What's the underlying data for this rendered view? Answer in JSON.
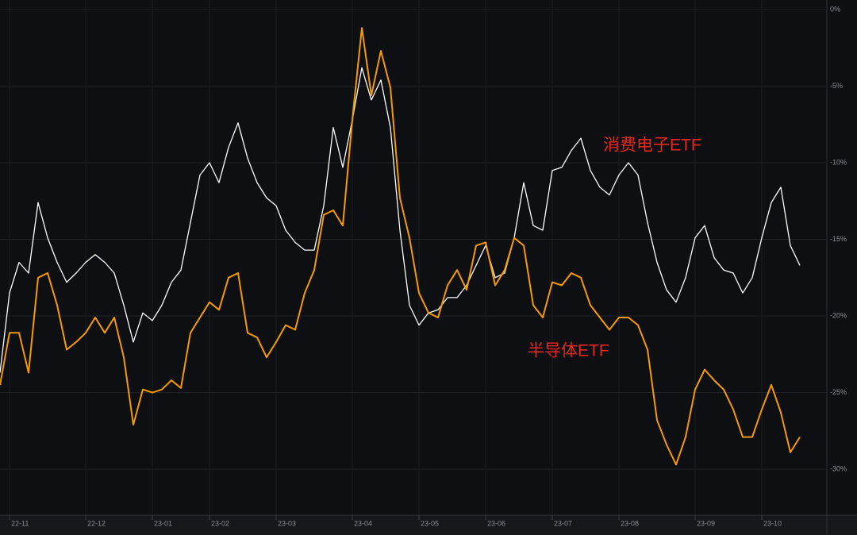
{
  "chart_data": {
    "type": "line",
    "categories": [
      null,
      "22-11",
      null,
      null,
      null,
      null,
      null,
      null,
      null,
      "22-12",
      null,
      null,
      null,
      null,
      null,
      null,
      "23-01",
      null,
      null,
      null,
      null,
      null,
      "23-02",
      null,
      null,
      null,
      null,
      null,
      null,
      "23-03",
      null,
      null,
      null,
      null,
      null,
      null,
      null,
      "23-04",
      null,
      null,
      null,
      null,
      null,
      null,
      "23-05",
      null,
      null,
      null,
      null,
      null,
      null,
      "23-06",
      null,
      null,
      null,
      null,
      null,
      null,
      "23-07",
      null,
      null,
      null,
      null,
      null,
      null,
      "23-08",
      null,
      null,
      null,
      null,
      null,
      null,
      null,
      "23-09",
      null,
      null,
      null,
      null,
      null,
      null,
      "23-10",
      null,
      null,
      null,
      null
    ],
    "series": [
      {
        "name": "消费电子ETF",
        "color": "#ffffff",
        "values": [
          -23.7,
          -18.5,
          -16.5,
          -17.2,
          -12.6,
          -14.9,
          -16.5,
          -17.8,
          -17.2,
          -16.5,
          -16,
          -16.5,
          -17.2,
          -19.3,
          -21.7,
          -19.8,
          -20.3,
          -19.3,
          -17.8,
          -17,
          -13.9,
          -10.8,
          -10,
          -11.3,
          -9,
          -7.4,
          -9.7,
          -11.3,
          -12.3,
          -12.8,
          -14.4,
          -15.2,
          -15.7,
          -15.7,
          -12.8,
          -7.7,
          -10.3,
          -7.2,
          -3.8,
          -5.9,
          -4.6,
          -7.7,
          -14.4,
          -19.3,
          -20.6,
          -19.8,
          -19.6,
          -18.8,
          -18.8,
          -18,
          -16.7,
          -15.4,
          -17.5,
          -17.2,
          -14.9,
          -11.3,
          -14.1,
          -14.4,
          -10.5,
          -10.3,
          -9.2,
          -8.4,
          -10.5,
          -11.6,
          -12.1,
          -10.8,
          -10,
          -10.8,
          -13.9,
          -16.5,
          -18.3,
          -19.1,
          -17.5,
          -14.9,
          -14.1,
          -16.2,
          -17,
          -17.2,
          -18.5,
          -17.5,
          -14.9,
          -12.6,
          -11.6,
          -15.4,
          -16.7
        ]
      },
      {
        "name": "半导体ETF",
        "color": "#f59b00",
        "values": [
          -24.5,
          -21.1,
          -21.1,
          -23.7,
          -17.5,
          -17.2,
          -19.3,
          -22.2,
          -21.7,
          -21.1,
          -20.1,
          -21.1,
          -20.1,
          -22.7,
          -27.1,
          -24.8,
          -25,
          -24.8,
          -24.2,
          -24.7,
          -21.1,
          -20.1,
          -19.1,
          -19.6,
          -17.5,
          -17.2,
          -21.1,
          -21.4,
          -22.7,
          -21.7,
          -20.6,
          -20.9,
          -18.5,
          -17,
          -13.4,
          -13.1,
          -14.1,
          -7.2,
          -1.2,
          -5.6,
          -2.7,
          -5.1,
          -12.3,
          -14.9,
          -18.5,
          -19.8,
          -20.1,
          -18,
          -17,
          -18.3,
          -15.4,
          -15.2,
          -18,
          -17,
          -14.9,
          -15.4,
          -19.3,
          -20.1,
          -17.8,
          -18,
          -17.2,
          -17.5,
          -19.3,
          -20.1,
          -20.9,
          -20.1,
          -20.1,
          -20.6,
          -22.2,
          -26.8,
          -28.4,
          -29.7,
          -27.9,
          -24.8,
          -23.5,
          -24.2,
          -24.8,
          -26.1,
          -27.9,
          -27.9,
          -26.1,
          -24.5,
          -26.3,
          -28.9,
          -27.9
        ]
      }
    ],
    "annotations": [
      {
        "text": "消费电子ETF",
        "color": "#e8251e"
      },
      {
        "text": "半导体ETF",
        "color": "#e8251e"
      }
    ],
    "ylim": [
      -33,
      0
    ],
    "yticks": [
      {
        "value": 0,
        "label": "0%"
      },
      {
        "value": -5,
        "label": "-5%"
      },
      {
        "value": -10,
        "label": "-10%"
      },
      {
        "value": -15,
        "label": "-15%"
      },
      {
        "value": -20,
        "label": "-20%"
      },
      {
        "value": -25,
        "label": "-25%"
      },
      {
        "value": -30,
        "label": "-30%"
      }
    ],
    "grid": true
  }
}
